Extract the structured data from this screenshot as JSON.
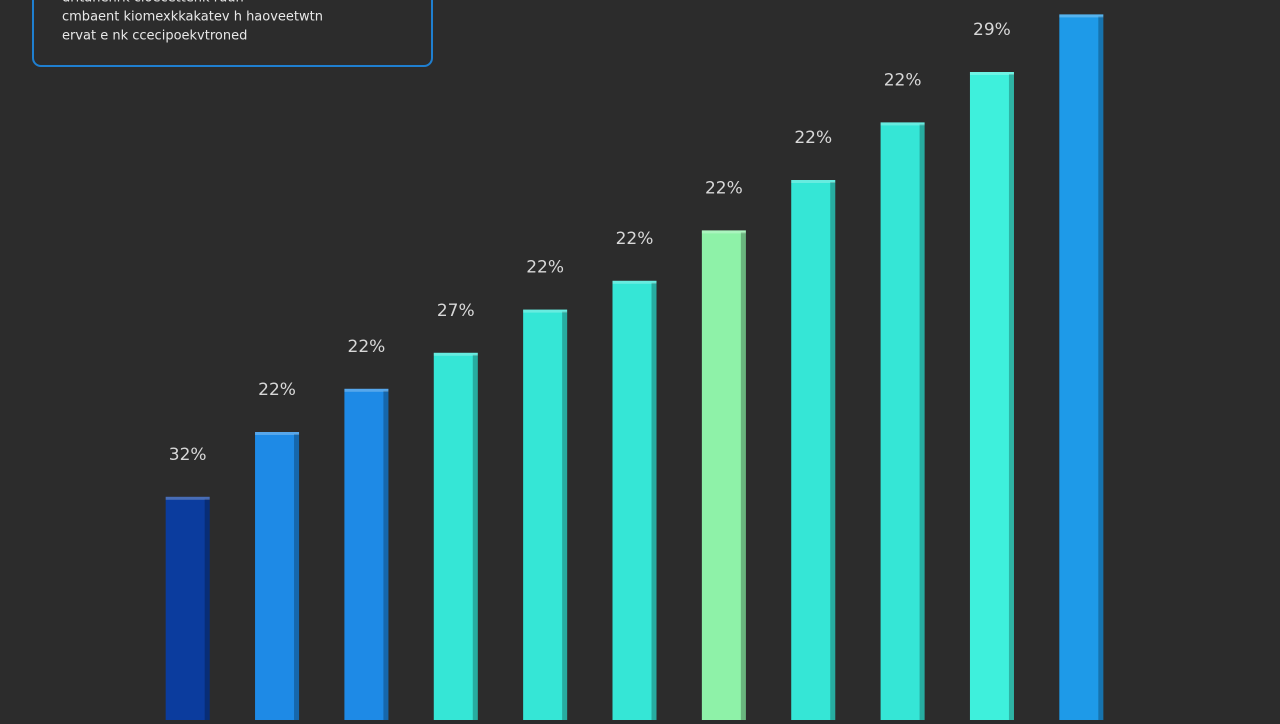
{
  "chart_data": {
    "type": "bar",
    "legend_lines": [
      "dritanenrk cloecettenk ruun",
      "cmbaent kiomexkkakatev h haoveetwtn",
      "ervat e nk ccecipoekvtroned"
    ],
    "categories": [
      null,
      null,
      null,
      null,
      null,
      null,
      null,
      null,
      null,
      null,
      null
    ],
    "values": [
      31,
      40,
      46,
      51,
      57,
      61,
      68,
      75,
      83,
      90,
      98
    ],
    "bar_labels": [
      "32%",
      "22%",
      "22%",
      "27%",
      "22%",
      "22%",
      "22%",
      "22%",
      "22%",
      "29%",
      null
    ],
    "colors": [
      "#0b3c9e",
      "#1e8ae6",
      "#1e8ae6",
      "#35e6d6",
      "#35e6d6",
      "#35e6d6",
      "#8ef2a8",
      "#35e6d6",
      "#35e6d6",
      "#3ef0dc",
      "#1e9ae8"
    ],
    "ylim": [
      0,
      100
    ]
  }
}
